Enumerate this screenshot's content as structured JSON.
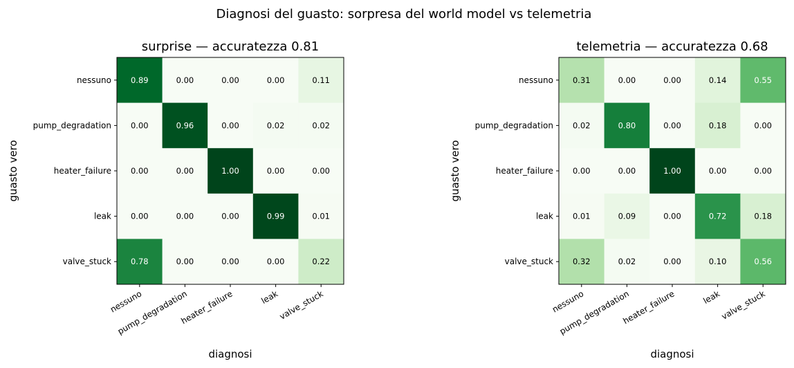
{
  "suptitle": "Diagnosi del guasto: sorpresa del world model vs telemetria",
  "chart_data": [
    {
      "type": "heatmap",
      "title": "surprise — accuratezza 0.81",
      "xlabel": "diagnosi",
      "ylabel": "guasto vero",
      "x_categories": [
        "nessuno",
        "pump_degradation",
        "heater_failure",
        "leak",
        "valve_stuck"
      ],
      "y_categories": [
        "nessuno",
        "pump_degradation",
        "heater_failure",
        "leak",
        "valve_stuck"
      ],
      "values": [
        [
          0.89,
          0.0,
          0.0,
          0.0,
          0.11
        ],
        [
          0.0,
          0.96,
          0.0,
          0.02,
          0.02
        ],
        [
          0.0,
          0.0,
          1.0,
          0.0,
          0.0
        ],
        [
          0.0,
          0.0,
          0.0,
          0.99,
          0.01
        ],
        [
          0.78,
          0.0,
          0.0,
          0.0,
          0.22
        ]
      ],
      "vmin": 0,
      "vmax": 1,
      "colormap": "Greens"
    },
    {
      "type": "heatmap",
      "title": "telemetria — accuratezza 0.68",
      "xlabel": "diagnosi",
      "ylabel": "guasto vero",
      "x_categories": [
        "nessuno",
        "pump_degradation",
        "heater_failure",
        "leak",
        "valve_stuck"
      ],
      "y_categories": [
        "nessuno",
        "pump_degradation",
        "heater_failure",
        "leak",
        "valve_stuck"
      ],
      "values": [
        [
          0.31,
          0.0,
          0.0,
          0.14,
          0.55
        ],
        [
          0.02,
          0.8,
          0.0,
          0.18,
          0.0
        ],
        [
          0.0,
          0.0,
          1.0,
          0.0,
          0.0
        ],
        [
          0.01,
          0.09,
          0.0,
          0.72,
          0.18
        ],
        [
          0.32,
          0.02,
          0.0,
          0.1,
          0.56
        ]
      ],
      "vmin": 0,
      "vmax": 1,
      "colormap": "Greens"
    }
  ]
}
